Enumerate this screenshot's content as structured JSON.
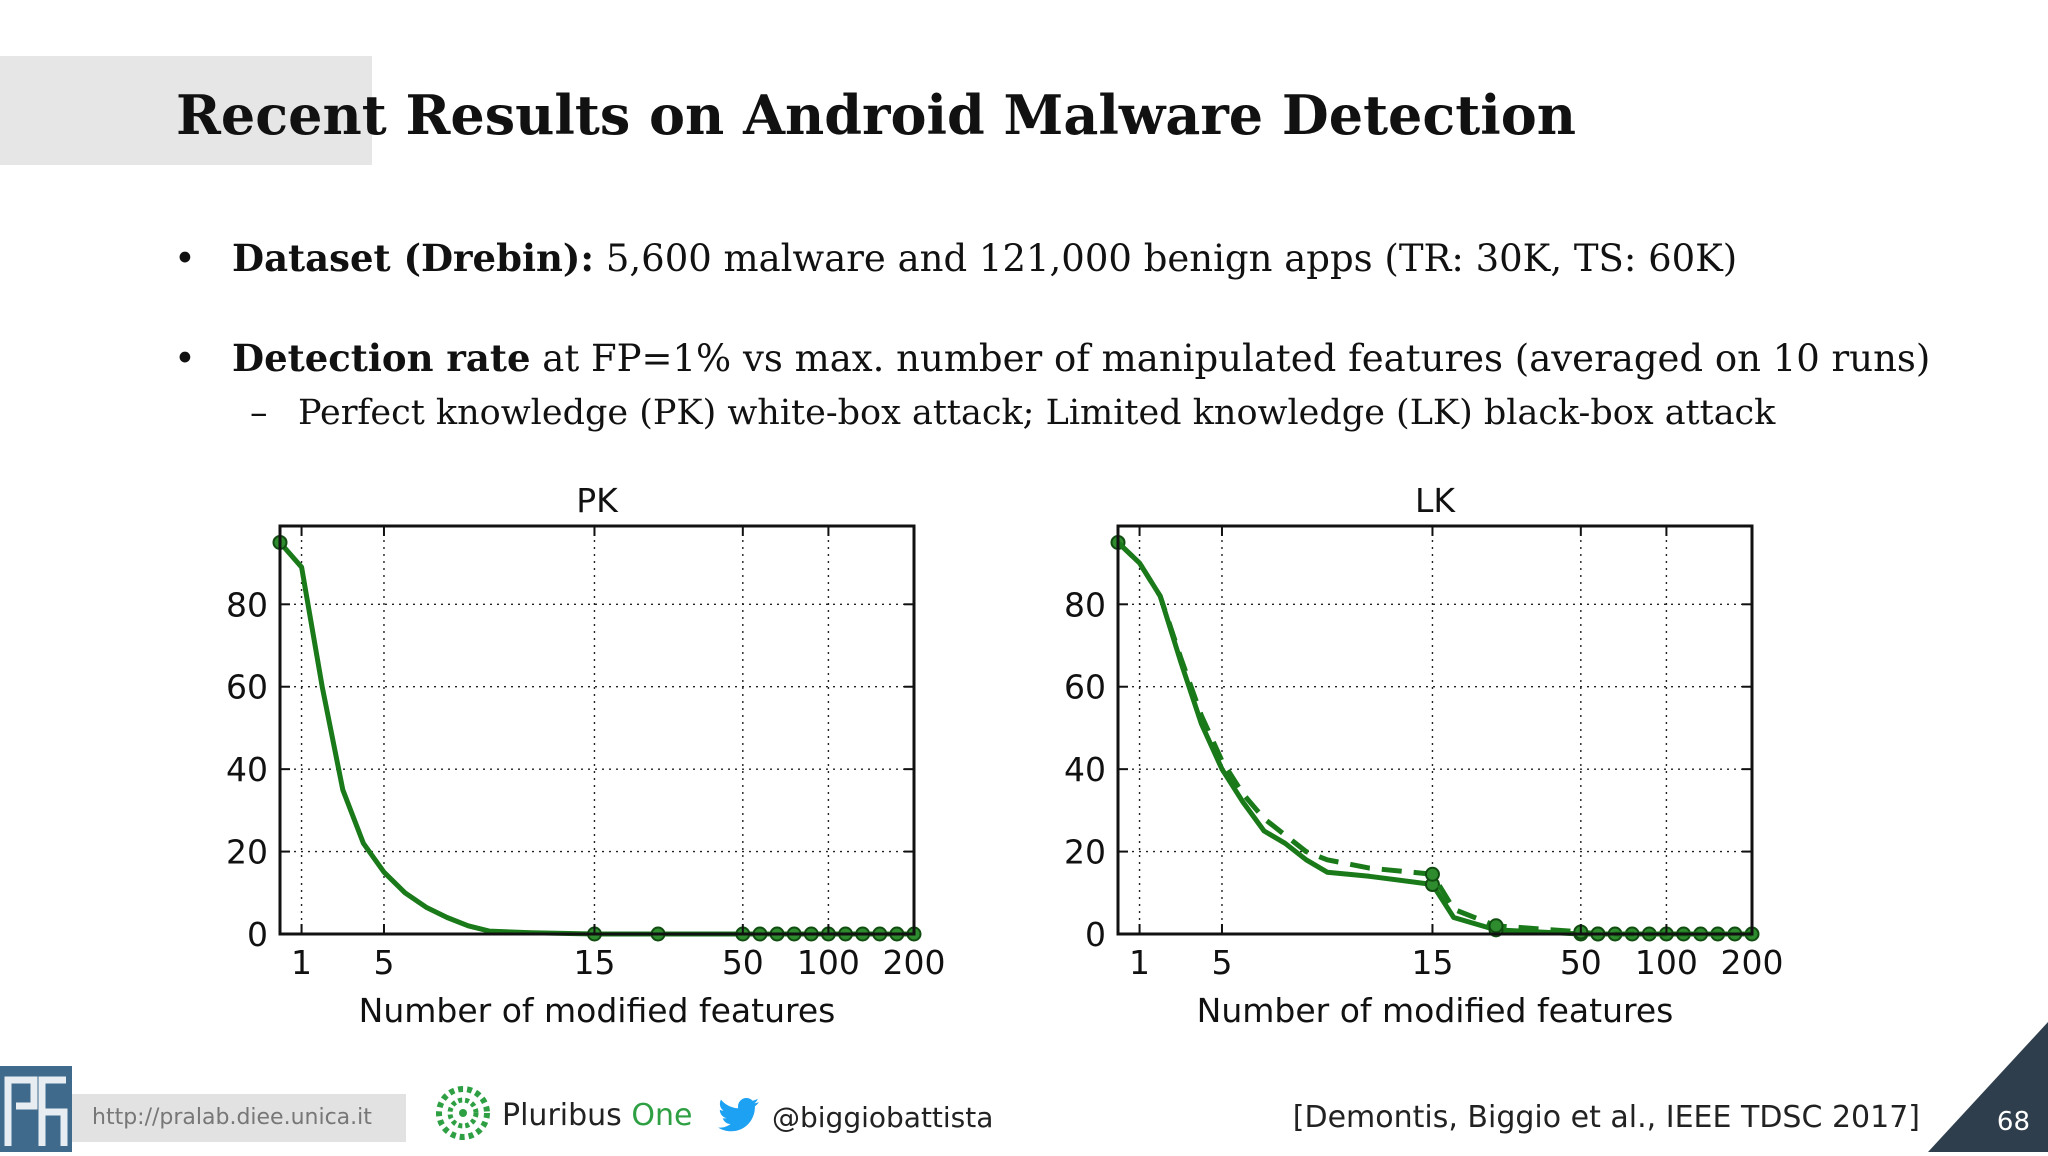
{
  "slide": {
    "title": "Recent Results on Android Malware Detection",
    "bullets": [
      {
        "bold": "Dataset (Drebin):",
        "text": " 5,600 malware and 121,000 benign apps (TR: 30K, TS: 60K)"
      },
      {
        "bold": "Detection rate",
        "text": " at FP=1% vs max. number of manipulated features (averaged on 10 runs)"
      }
    ],
    "sub_bullet": "Perfect knowledge (PK) white-box attack; Limited knowledge (LK) black-box attack",
    "colors": {
      "series": "#1a7a1a",
      "marker_fill": "#2e8b2e",
      "title_band": "#e6e6e6",
      "corner": "#2f3e4d"
    }
  },
  "footer": {
    "url": "http://pralab.diee.unica.it",
    "brand_main": "Pluribus",
    "brand_accent": "One",
    "twitter_handle": "@biggiobattista",
    "citation": "[Demontis, Biggio et al., IEEE TDSC 2017]",
    "page_number": "68",
    "icons": [
      "pralab-logo-icon",
      "pluribus-one-logo-icon",
      "twitter-bird-icon"
    ]
  },
  "chart_data": [
    {
      "type": "line",
      "title": "PK",
      "xlabel": "Number of modified features",
      "ylabel": "",
      "xticks": [
        1,
        5,
        15,
        50,
        100,
        200
      ],
      "yticks": [
        0,
        20,
        40,
        60,
        80
      ],
      "ylim": [
        0,
        99
      ],
      "grid": true,
      "series": [
        {
          "style": "solid",
          "x": [
            0,
            1,
            2,
            3,
            4,
            5,
            6,
            7,
            8,
            9,
            10,
            12,
            15,
            20,
            30,
            50,
            60,
            70,
            80,
            90,
            100,
            120,
            140,
            160,
            180,
            200
          ],
          "y": [
            95,
            89,
            60,
            35,
            22,
            15,
            10,
            6.5,
            4,
            2,
            0.7,
            0.3,
            0,
            0,
            0,
            0,
            0,
            0,
            0,
            0,
            0,
            0,
            0,
            0,
            0,
            0
          ],
          "markers_at": [
            0,
            15,
            30,
            50,
            60,
            70,
            80,
            90,
            100,
            120,
            140,
            160,
            180,
            200
          ]
        }
      ]
    },
    {
      "type": "line",
      "title": "LK",
      "xlabel": "Number of modified features",
      "ylabel": "",
      "xticks": [
        1,
        5,
        15,
        50,
        100,
        200
      ],
      "yticks": [
        0,
        20,
        40,
        60,
        80
      ],
      "ylim": [
        0,
        99
      ],
      "grid": true,
      "series": [
        {
          "style": "solid",
          "x": [
            0,
            1,
            2,
            3,
            4,
            5,
            6,
            7,
            8,
            9,
            10,
            12,
            15,
            20,
            30,
            50,
            60,
            70,
            80,
            90,
            100,
            120,
            140,
            160,
            180,
            200
          ],
          "y": [
            95,
            90,
            82,
            66,
            51,
            40,
            32,
            25,
            22,
            18,
            15,
            14,
            12,
            4,
            1,
            0,
            0,
            0,
            0,
            0,
            0,
            0,
            0,
            0,
            0,
            0
          ],
          "markers_at": [
            0,
            15,
            30,
            50,
            60,
            70,
            80,
            90,
            100,
            120,
            140,
            160,
            180,
            200
          ]
        },
        {
          "style": "dashed",
          "x": [
            0,
            1,
            2,
            3,
            4,
            5,
            6,
            7,
            8,
            9,
            10,
            12,
            15,
            20,
            30,
            50,
            60,
            70,
            80,
            90,
            100,
            120,
            140,
            160,
            180,
            200
          ],
          "y": [
            95,
            90,
            82,
            67,
            53,
            42,
            34,
            28,
            24,
            20,
            18,
            16,
            14.5,
            6,
            2,
            0.5,
            0,
            0,
            0,
            0,
            0,
            0,
            0,
            0,
            0,
            0
          ],
          "markers_at": [
            15,
            30,
            50,
            60
          ]
        }
      ]
    }
  ]
}
